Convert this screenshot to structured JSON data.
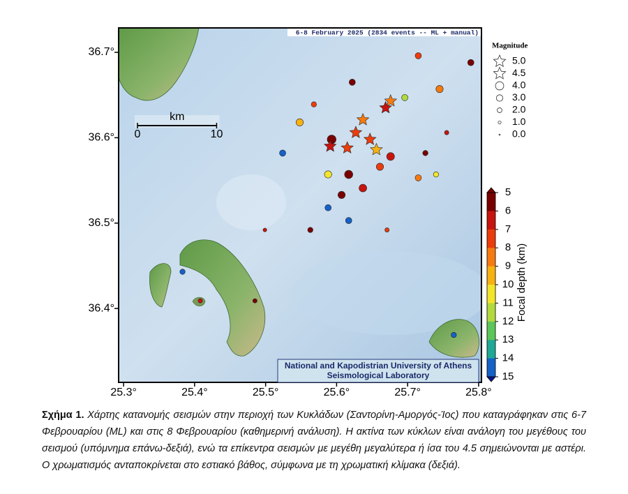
{
  "chart_data": {
    "type": "map",
    "title": "6-8 February 2025 (2834 events -- ML + manual)",
    "xlim": [
      25.293,
      25.804
    ],
    "ylim": [
      36.3135,
      36.7286
    ],
    "xticks": [
      {
        "value": 25.3,
        "label": "25.3°"
      },
      {
        "value": 25.4,
        "label": "25.4°"
      },
      {
        "value": 25.5,
        "label": "25.5°"
      },
      {
        "value": 25.6,
        "label": "25.6°"
      },
      {
        "value": 25.7,
        "label": "25.7°"
      },
      {
        "value": 25.8,
        "label": "25.8°"
      }
    ],
    "yticks": [
      {
        "value": 36.4,
        "label": "36.4°"
      },
      {
        "value": 36.5,
        "label": "36.5°"
      },
      {
        "value": 36.6,
        "label": "36.6°"
      },
      {
        "value": 36.7,
        "label": "36.7°"
      }
    ],
    "scale_bar": {
      "unit": "km",
      "ticks": [
        0,
        10
      ]
    },
    "legend": {
      "title": "Magnitude",
      "star_from": 4.5,
      "items": [
        {
          "value": 5,
          "label": "5.0"
        },
        {
          "value": 4.5,
          "label": "4.5"
        },
        {
          "value": 4,
          "label": "4.0"
        },
        {
          "value": 3,
          "label": "3.0"
        },
        {
          "value": 2,
          "label": "2.0"
        },
        {
          "value": 1,
          "label": "1.0"
        },
        {
          "value": 0,
          "label": "0.0"
        }
      ]
    },
    "colorbar": {
      "label": "Focal depth (km)",
      "ticks": [
        5,
        6,
        7,
        8,
        9,
        10,
        11,
        12,
        13,
        14,
        15
      ],
      "colors": [
        "#7a0000",
        "#c8140f",
        "#ec3c0c",
        "#f67a10",
        "#f7b212",
        "#f3e52a",
        "#b2da3c",
        "#5cc65a",
        "#1fa896",
        "#1462c8",
        "#0a148c"
      ]
    },
    "credit": [
      "National and Kapodistrian University of Athens",
      "Seismological Laboratory"
    ],
    "events": {
      "lon": [
        25.591,
        25.615,
        25.637,
        25.647,
        25.669,
        25.676,
        25.656,
        25.627,
        25.617,
        25.637,
        25.607,
        25.593,
        25.676,
        25.661,
        25.548,
        25.622,
        25.745,
        25.789,
        25.715,
        25.696,
        25.588,
        25.617,
        25.588,
        25.383,
        25.408,
        25.485,
        25.765,
        25.524,
        25.74,
        25.715,
        25.563,
        25.499,
        25.671,
        25.755,
        25.568,
        25.725
      ],
      "lat": [
        36.59,
        36.588,
        36.621,
        36.598,
        36.635,
        36.643,
        36.586,
        36.606,
        36.557,
        36.541,
        36.533,
        36.598,
        36.578,
        36.566,
        36.618,
        36.665,
        36.657,
        36.688,
        36.696,
        36.647,
        36.557,
        36.503,
        36.518,
        36.443,
        36.409,
        36.409,
        36.369,
        36.582,
        36.557,
        36.553,
        36.492,
        36.492,
        36.492,
        36.606,
        36.639,
        36.582
      ],
      "depth": [
        7,
        8,
        9,
        7.5,
        7,
        8.5,
        9.5,
        8,
        6,
        7,
        5.5,
        6,
        7,
        8,
        9.5,
        6,
        9,
        6,
        8,
        12,
        11,
        14.5,
        15,
        15,
        7,
        6,
        14.5,
        14.5,
        11,
        8.5,
        6,
        7,
        8,
        7,
        8,
        6
      ],
      "mag": [
        4.9,
        4.7,
        4.8,
        4.6,
        4.9,
        4.8,
        4.6,
        4.7,
        3.5,
        3.2,
        3.0,
        3.8,
        3.3,
        3.0,
        3.0,
        2.5,
        3.0,
        2.5,
        2.5,
        2.5,
        3.0,
        2.5,
        2.5,
        2.0,
        1.5,
        1.5,
        2.0,
        2.5,
        2.0,
        2.5,
        2.0,
        1.2,
        1.5,
        1.5,
        2.0,
        2.0
      ]
    }
  },
  "caption": {
    "label": "Σχήμα 1.",
    "text": "Χάρτης κατανομής σεισμών στην περιοχή των Κυκλάδων (Σαντορίνη-Αμοργός-Ίος) που καταγράφηκαν στις 6-7 Φεβρουαρίου (ML) και στις 8 Φεβρουαρίου (καθημερινή ανάλυση). Η ακτίνα των κύκλων είναι ανάλογη του μεγέθους του σεισμού (υπόμνημα επάνω-δεξιά), ενώ τα επίκεντρα σεισμών με μεγέθη μεγαλύτερα ή ίσα του 4.5 σημειώνονται με αστέρι. Ο χρωματισμός ανταποκρίνεται στο εστιακό βάθος, σύμφωνα με τη χρωματική κλίμακα (δεξιά)."
  }
}
